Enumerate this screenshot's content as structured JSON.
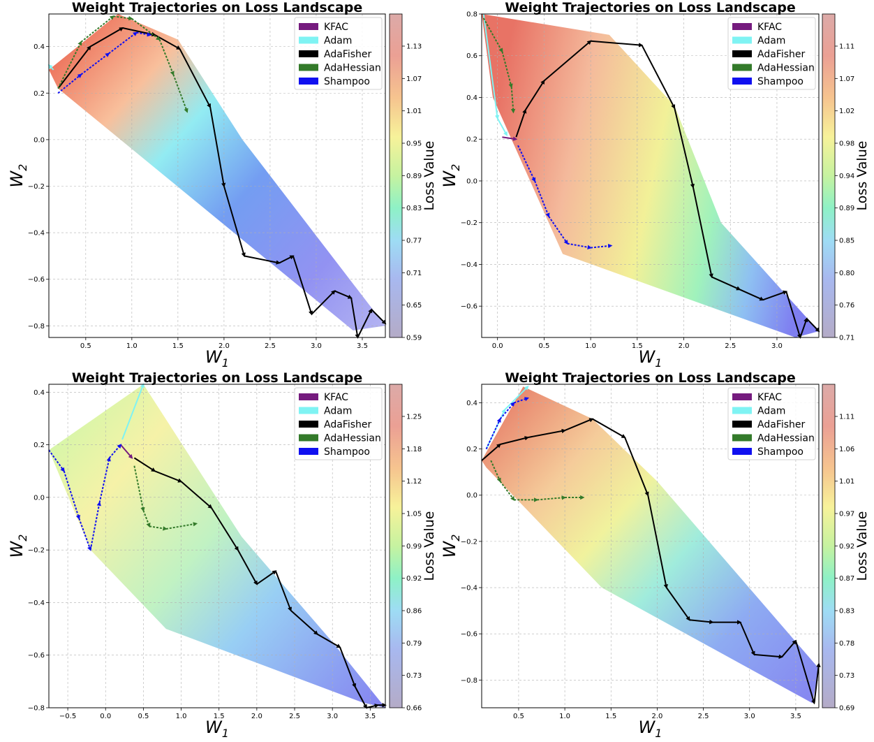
{
  "legend_labels": [
    "KFAC",
    "Adam",
    "AdaFisher",
    "AdaHessian",
    "Shampoo"
  ],
  "legend_colors": [
    "#751b7e",
    "#7ff3f3",
    "#000000",
    "#337a2a",
    "#1010f0"
  ],
  "chart_data": [
    {
      "type": "line",
      "title": "Weight Trajectories on Loss Landscape",
      "xlabel": "W_1",
      "ylabel": "W_2",
      "colorbar_label": "Loss Value",
      "xlim": [
        0.1,
        3.75
      ],
      "ylim": [
        -0.85,
        0.54
      ],
      "xticks": [
        "0.5",
        "1.0",
        "1.5",
        "2.0",
        "2.5",
        "3.0",
        "3.5"
      ],
      "yticks": [
        "0.4",
        "0.2",
        "0.0",
        "−0.2",
        "−0.4",
        "−0.6",
        "−0.8"
      ],
      "colorbar_ticks": [
        "1.13",
        "1.07",
        "1.01",
        "0.95",
        "0.89",
        "0.83",
        "0.77",
        "0.71",
        "0.65",
        "0.59"
      ],
      "landscape_polygon": [
        [
          0.1,
          0.3
        ],
        [
          0.85,
          0.54
        ],
        [
          1.5,
          0.43
        ],
        [
          2.2,
          0.0
        ],
        [
          3.75,
          -0.8
        ],
        [
          3.4,
          -0.82
        ],
        [
          0.2,
          0.22
        ]
      ],
      "series": [
        {
          "name": "KFAC",
          "x": [],
          "y": []
        },
        {
          "name": "Adam",
          "x": [
            0.15,
            0.1
          ],
          "y": [
            0.3,
            0.32
          ]
        },
        {
          "name": "AdaFisher",
          "x": [
            0.2,
            0.55,
            0.9,
            1.25,
            1.52,
            1.85,
            2.0,
            2.22,
            2.6,
            2.75,
            2.95,
            3.2,
            3.38,
            3.45,
            3.6,
            3.75
          ],
          "y": [
            0.22,
            0.4,
            0.48,
            0.45,
            0.39,
            0.14,
            -0.2,
            -0.5,
            -0.53,
            -0.5,
            -0.75,
            -0.65,
            -0.68,
            -0.85,
            -0.73,
            -0.79
          ]
        },
        {
          "name": "AdaHessian",
          "x": [
            0.2,
            0.45,
            0.8,
            1.0,
            1.3,
            1.45,
            1.6
          ],
          "y": [
            0.22,
            0.42,
            0.53,
            0.52,
            0.43,
            0.28,
            0.12
          ]
        },
        {
          "name": "Shampoo",
          "x": [
            0.2,
            0.45,
            0.75,
            1.05,
            1.2
          ],
          "y": [
            0.2,
            0.28,
            0.37,
            0.46,
            0.45
          ]
        }
      ]
    },
    {
      "type": "line",
      "title": "Weight Trajectories on Loss Landscape",
      "xlabel": "W_1",
      "ylabel": "W_2",
      "colorbar_label": "Loss Value",
      "xlim": [
        -0.17,
        3.45
      ],
      "ylim": [
        -0.75,
        0.8
      ],
      "xticks": [
        "0.0",
        "0.5",
        "1.0",
        "1.5",
        "2.0",
        "2.5",
        "3.0"
      ],
      "yticks": [
        "0.8",
        "0.6",
        "0.4",
        "0.2",
        "0.0",
        "−0.2",
        "−0.4",
        "−0.6"
      ],
      "colorbar_ticks": [
        "1.11",
        "1.07",
        "1.02",
        "0.98",
        "0.94",
        "0.89",
        "0.85",
        "0.80",
        "0.76",
        "0.71"
      ],
      "landscape_polygon": [
        [
          -0.17,
          0.8
        ],
        [
          1.2,
          0.7
        ],
        [
          1.9,
          0.36
        ],
        [
          2.4,
          -0.2
        ],
        [
          3.45,
          -0.72
        ],
        [
          3.2,
          -0.75
        ],
        [
          0.7,
          -0.35
        ],
        [
          -0.05,
          0.4
        ]
      ],
      "series": [
        {
          "name": "KFAC",
          "x": [
            0.05,
            0.2
          ],
          "y": [
            0.21,
            0.2
          ]
        },
        {
          "name": "Adam",
          "x": [
            -0.15,
            0.0,
            0.1
          ],
          "y": [
            0.8,
            0.3,
            0.22
          ]
        },
        {
          "name": "AdaFisher",
          "x": [
            0.2,
            0.3,
            0.5,
            1.0,
            1.55,
            1.9,
            2.1,
            2.3,
            2.6,
            2.85,
            3.1,
            3.25,
            3.32,
            3.45
          ],
          "y": [
            0.21,
            0.34,
            0.48,
            0.67,
            0.65,
            0.35,
            -0.03,
            -0.46,
            -0.52,
            -0.57,
            -0.53,
            -0.75,
            -0.66,
            -0.72
          ]
        },
        {
          "name": "AdaHessian",
          "x": [
            -0.15,
            0.05,
            0.15,
            0.17
          ],
          "y": [
            0.78,
            0.62,
            0.45,
            0.33
          ]
        },
        {
          "name": "Shampoo",
          "x": [
            0.22,
            0.4,
            0.55,
            0.75,
            1.0,
            1.22
          ],
          "y": [
            0.17,
            0.0,
            -0.17,
            -0.3,
            -0.32,
            -0.31
          ]
        }
      ]
    },
    {
      "type": "line",
      "title": "Weight Trajectories on Loss Landscape",
      "xlabel": "W_1",
      "ylabel": "W_2",
      "colorbar_label": "Loss Value",
      "xlim": [
        -0.75,
        3.7
      ],
      "ylim": [
        -0.8,
        0.43
      ],
      "xticks": [
        "−0.5",
        "0.0",
        "0.5",
        "1.0",
        "1.5",
        "2.0",
        "2.5",
        "3.0",
        "3.5"
      ],
      "yticks": [
        "0.4",
        "0.2",
        "0.0",
        "−0.2",
        "−0.4",
        "−0.6",
        "−0.8"
      ],
      "colorbar_ticks": [
        "1.25",
        "1.18",
        "1.12",
        "1.05",
        "0.99",
        "0.92",
        "0.86",
        "0.79",
        "0.73",
        "0.66"
      ],
      "landscape_polygon": [
        [
          -0.75,
          0.18
        ],
        [
          0.5,
          0.43
        ],
        [
          1.8,
          -0.15
        ],
        [
          3.0,
          -0.55
        ],
        [
          3.7,
          -0.8
        ],
        [
          3.4,
          -0.78
        ],
        [
          0.8,
          -0.5
        ],
        [
          -0.2,
          -0.2
        ]
      ],
      "series": [
        {
          "name": "KFAC",
          "x": [
            0.2,
            0.35
          ],
          "y": [
            0.2,
            0.15
          ]
        },
        {
          "name": "Adam",
          "x": [
            0.22,
            0.5
          ],
          "y": [
            0.22,
            0.43
          ]
        },
        {
          "name": "AdaFisher",
          "x": [
            0.38,
            0.65,
            1.0,
            1.4,
            1.75,
            2.0,
            2.25,
            2.45,
            2.8,
            3.1,
            3.3,
            3.45,
            3.6,
            3.7
          ],
          "y": [
            0.15,
            0.1,
            0.06,
            -0.04,
            -0.2,
            -0.33,
            -0.28,
            -0.43,
            -0.52,
            -0.57,
            -0.72,
            -0.8,
            -0.79,
            -0.79
          ]
        },
        {
          "name": "AdaHessian",
          "x": [
            0.38,
            0.5,
            0.58,
            0.8,
            1.2
          ],
          "y": [
            0.12,
            -0.05,
            -0.11,
            -0.12,
            -0.1
          ]
        },
        {
          "name": "Shampoo",
          "x": [
            -0.75,
            -0.55,
            -0.35,
            -0.2,
            -0.08,
            0.05,
            0.2
          ],
          "y": [
            0.18,
            0.1,
            -0.08,
            -0.2,
            -0.02,
            0.15,
            0.2
          ]
        }
      ]
    },
    {
      "type": "line",
      "title": "Weight Trajectories on Loss Landscape",
      "xlabel": "W_1",
      "ylabel": "W_2",
      "colorbar_label": "Loss Value",
      "xlim": [
        0.1,
        3.75
      ],
      "ylim": [
        -0.92,
        0.48
      ],
      "xticks": [
        "0.5",
        "1.0",
        "1.5",
        "2.0",
        "2.5",
        "3.0",
        "3.5"
      ],
      "yticks": [
        "0.4",
        "0.2",
        "0.0",
        "−0.2",
        "−0.4",
        "−0.6",
        "−0.8"
      ],
      "colorbar_ticks": [
        "1.11",
        "1.06",
        "1.01",
        "0.97",
        "0.92",
        "0.87",
        "0.83",
        "0.78",
        "0.73",
        "0.69"
      ],
      "landscape_polygon": [
        [
          0.1,
          0.15
        ],
        [
          0.55,
          0.47
        ],
        [
          1.3,
          0.33
        ],
        [
          2.0,
          0.06
        ],
        [
          3.75,
          -0.75
        ],
        [
          3.68,
          -0.9
        ],
        [
          1.4,
          -0.4
        ],
        [
          0.15,
          0.12
        ]
      ],
      "series": [
        {
          "name": "KFAC",
          "x": [],
          "y": []
        },
        {
          "name": "Adam",
          "x": [
            0.15,
            0.35,
            0.6
          ],
          "y": [
            0.2,
            0.37,
            0.47
          ]
        },
        {
          "name": "AdaFisher",
          "x": [
            0.1,
            0.3,
            0.6,
            1.0,
            1.3,
            1.65,
            1.9,
            2.1,
            2.35,
            2.6,
            2.9,
            3.05,
            3.35,
            3.5,
            3.7,
            3.75
          ],
          "y": [
            0.15,
            0.22,
            0.25,
            0.28,
            0.33,
            0.25,
            0.0,
            -0.4,
            -0.54,
            -0.55,
            -0.55,
            -0.69,
            -0.7,
            -0.63,
            -0.9,
            -0.73
          ]
        },
        {
          "name": "AdaHessian",
          "x": [
            0.2,
            0.3,
            0.45,
            0.7,
            1.0,
            1.2
          ],
          "y": [
            0.15,
            0.06,
            -0.02,
            -0.02,
            -0.01,
            -0.01
          ]
        },
        {
          "name": "Shampoo",
          "x": [
            0.15,
            0.3,
            0.45,
            0.6
          ],
          "y": [
            0.2,
            0.33,
            0.4,
            0.42
          ]
        }
      ]
    }
  ]
}
